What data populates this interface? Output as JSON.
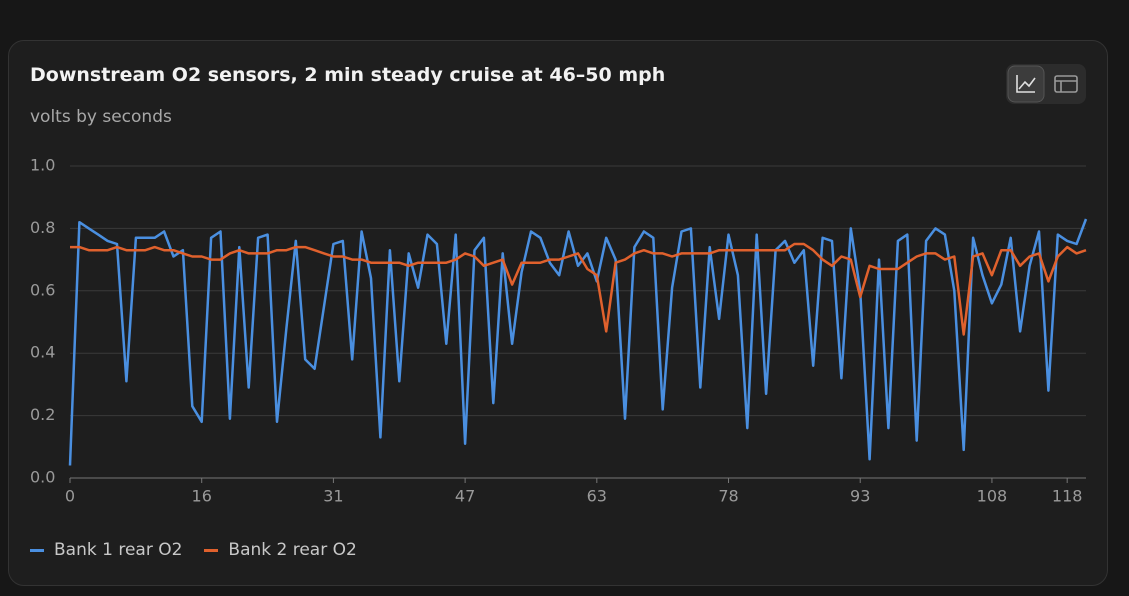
{
  "chart_data": {
    "type": "line",
    "title": "Downstream O2 sensors, 2 min steady cruise at 46–50 mph",
    "subtitle": "volts by seconds",
    "categories": [
      0,
      null,
      null,
      null,
      null,
      null,
      null,
      null,
      null,
      null,
      null,
      null,
      null,
      null,
      16,
      null,
      null,
      null,
      null,
      null,
      null,
      null,
      null,
      null,
      null,
      null,
      null,
      null,
      31,
      null,
      null,
      null,
      null,
      null,
      null,
      null,
      null,
      null,
      null,
      null,
      null,
      null,
      47,
      null,
      null,
      null,
      null,
      null,
      null,
      null,
      null,
      null,
      null,
      null,
      null,
      null,
      63,
      null,
      null,
      null,
      null,
      null,
      null,
      null,
      null,
      null,
      null,
      null,
      null,
      null,
      78,
      null,
      null,
      null,
      null,
      null,
      null,
      null,
      null,
      null,
      null,
      null,
      null,
      null,
      93,
      null,
      null,
      null,
      null,
      null,
      null,
      null,
      null,
      null,
      null,
      null,
      null,
      null,
      108,
      null,
      null,
      null,
      null,
      null,
      null,
      null,
      118,
      null,
      null
    ],
    "series": [
      {
        "name": "Bank 1 rear O2",
        "color": "#4a8fe0",
        "values": [
          0.04,
          0.82,
          0.8,
          0.78,
          0.76,
          0.75,
          0.31,
          0.77,
          0.77,
          0.77,
          0.79,
          0.71,
          0.73,
          0.23,
          0.18,
          0.77,
          0.79,
          0.19,
          0.74,
          0.29,
          0.77,
          0.78,
          0.18,
          0.48,
          0.76,
          0.38,
          0.35,
          0.55,
          0.75,
          0.76,
          0.38,
          0.79,
          0.64,
          0.13,
          0.73,
          0.31,
          0.72,
          0.61,
          0.78,
          0.75,
          0.43,
          0.78,
          0.11,
          0.73,
          0.77,
          0.24,
          0.72,
          0.43,
          0.66,
          0.79,
          0.77,
          0.69,
          0.65,
          0.79,
          0.68,
          0.72,
          0.63,
          0.77,
          0.7,
          0.19,
          0.74,
          0.79,
          0.77,
          0.22,
          0.61,
          0.79,
          0.8,
          0.29,
          0.74,
          0.51,
          0.78,
          0.65,
          0.16,
          0.78,
          0.27,
          0.73,
          0.76,
          0.69,
          0.73,
          0.36,
          0.77,
          0.76,
          0.32,
          0.8,
          0.6,
          0.06,
          0.7,
          0.16,
          0.76,
          0.78,
          0.12,
          0.76,
          0.8,
          0.78,
          0.6,
          0.09,
          0.77,
          0.65,
          0.56,
          0.62,
          0.77,
          0.47,
          0.68,
          0.79,
          0.28,
          0.78,
          0.76,
          0.75,
          0.83
        ]
      },
      {
        "name": "Bank 2 rear O2",
        "color": "#e0612d",
        "values": [
          0.74,
          0.74,
          0.73,
          0.73,
          0.73,
          0.74,
          0.73,
          0.73,
          0.73,
          0.74,
          0.73,
          0.73,
          0.72,
          0.71,
          0.71,
          0.7,
          0.7,
          0.72,
          0.73,
          0.72,
          0.72,
          0.72,
          0.73,
          0.73,
          0.74,
          0.74,
          0.73,
          0.72,
          0.71,
          0.71,
          0.7,
          0.7,
          0.69,
          0.69,
          0.69,
          0.69,
          0.68,
          0.69,
          0.69,
          0.69,
          0.69,
          0.7,
          0.72,
          0.71,
          0.68,
          0.69,
          0.7,
          0.62,
          0.69,
          0.69,
          0.69,
          0.7,
          0.7,
          0.71,
          0.72,
          0.67,
          0.65,
          0.47,
          0.69,
          0.7,
          0.72,
          0.73,
          0.72,
          0.72,
          0.71,
          0.72,
          0.72,
          0.72,
          0.72,
          0.73,
          0.73,
          0.73,
          0.73,
          0.73,
          0.73,
          0.73,
          0.73,
          0.75,
          0.75,
          0.73,
          0.7,
          0.68,
          0.71,
          0.7,
          0.58,
          0.68,
          0.67,
          0.67,
          0.67,
          0.69,
          0.71,
          0.72,
          0.72,
          0.7,
          0.71,
          0.46,
          0.71,
          0.72,
          0.65,
          0.73,
          0.73,
          0.68,
          0.71,
          0.72,
          0.63,
          0.71,
          0.74,
          0.72,
          0.73
        ]
      }
    ],
    "ylim": [
      0,
      1
    ],
    "yticks": [
      {
        "value": 0,
        "label": "0.0"
      },
      0.2,
      0.4,
      0.6,
      0.8,
      {
        "value": 1,
        "label": "1.0"
      }
    ],
    "grid": true
  }
}
